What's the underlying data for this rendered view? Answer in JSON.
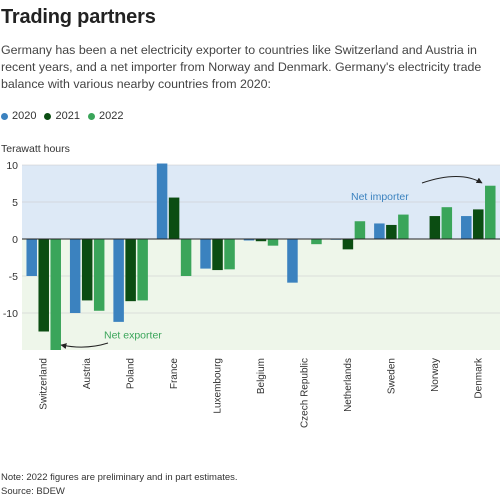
{
  "title": "Trading partners",
  "subtitle": "Germany has been a net electricity exporter to countries like Switzerland and Austria in recent years, and a net importer from Norway and Denmark. Germany's electricity trade balance with various nearby countries from 2020:",
  "note": "Note: 2022 figures are preliminary and in part estimates.",
  "source": "Source: BDEW",
  "colors": {
    "2020": "#3b82bf",
    "2021": "#0b4d12",
    "2022": "#3aa55a",
    "import_bg": "#dde9f6",
    "export_bg": "#eef6ea",
    "import_text": "#3b82bf",
    "export_text": "#3aa55a"
  },
  "chart_data": {
    "type": "bar",
    "ylabel": "Terawatt hours",
    "ylim": [
      -15,
      10
    ],
    "yticks": [
      10,
      5,
      0,
      -5,
      -10
    ],
    "categories": [
      "Switzerland",
      "Austria",
      "Poland",
      "France",
      "Luxembourg",
      "Belgium",
      "Czech Republic",
      "Netherlands",
      "Sweden",
      "Norway",
      "Denmark"
    ],
    "series": [
      {
        "name": "2020",
        "values": [
          -5.0,
          -10.0,
          -11.2,
          10.2,
          -4.0,
          -0.2,
          -5.9,
          -0.1,
          2.1,
          0.0,
          3.1
        ]
      },
      {
        "name": "2021",
        "values": [
          -12.5,
          -8.3,
          -8.4,
          5.6,
          -4.2,
          -0.3,
          0.0,
          -1.4,
          1.9,
          3.1,
          4.0
        ]
      },
      {
        "name": "2022",
        "values": [
          -15.0,
          -9.7,
          -8.3,
          -5.0,
          -4.1,
          -0.9,
          -0.7,
          2.4,
          3.3,
          4.3,
          7.2
        ]
      }
    ],
    "annotations": [
      {
        "text": "Net importer",
        "region": "positive"
      },
      {
        "text": "Net exporter",
        "region": "negative"
      }
    ],
    "legend_position": "top-left",
    "grid": true
  }
}
